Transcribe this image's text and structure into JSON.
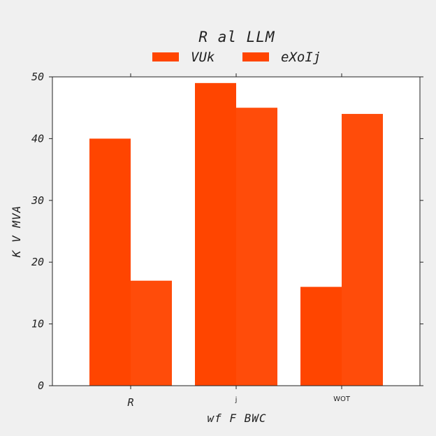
{
  "chart_data": {
    "type": "bar",
    "title": "R al LLM",
    "xlabel": "wf F BWC",
    "ylabel": "K V MVA",
    "categories": [
      "R",
      "j",
      "WOT"
    ],
    "series": [
      {
        "name": "VUk",
        "values": [
          40,
          49,
          16
        ],
        "color": "#ff4500"
      },
      {
        "name": "eXoIj",
        "values": [
          17,
          45,
          44
        ],
        "color": "#ff4500"
      }
    ],
    "ylim": [
      0,
      50
    ],
    "yticks": [
      0,
      10,
      20,
      30,
      40,
      50
    ],
    "grid": false,
    "legend_position": "top-center"
  }
}
